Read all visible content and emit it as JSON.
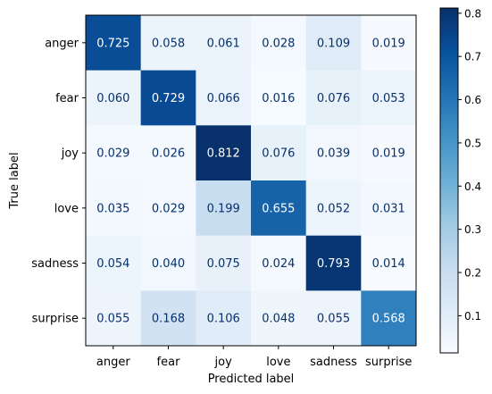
{
  "chart_data": {
    "type": "heatmap",
    "title": "",
    "xlabel": "Predicted label",
    "ylabel": "True label",
    "x_categories": [
      "anger",
      "fear",
      "joy",
      "love",
      "sadness",
      "surprise"
    ],
    "y_categories": [
      "anger",
      "fear",
      "joy",
      "love",
      "sadness",
      "surprise"
    ],
    "values": [
      [
        0.725,
        0.058,
        0.061,
        0.028,
        0.109,
        0.019
      ],
      [
        0.06,
        0.729,
        0.066,
        0.016,
        0.076,
        0.053
      ],
      [
        0.029,
        0.026,
        0.812,
        0.076,
        0.039,
        0.019
      ],
      [
        0.035,
        0.029,
        0.199,
        0.655,
        0.052,
        0.031
      ],
      [
        0.054,
        0.04,
        0.075,
        0.024,
        0.793,
        0.014
      ],
      [
        0.055,
        0.168,
        0.106,
        0.048,
        0.055,
        0.568
      ]
    ],
    "value_labels": [
      [
        "0.725",
        "0.058",
        "0.061",
        "0.028",
        "0.109",
        "0.019"
      ],
      [
        "0.060",
        "0.729",
        "0.066",
        "0.016",
        "0.076",
        "0.053"
      ],
      [
        "0.029",
        "0.026",
        "0.812",
        "0.076",
        "0.039",
        "0.019"
      ],
      [
        "0.035",
        "0.029",
        "0.199",
        "0.655",
        "0.052",
        "0.031"
      ],
      [
        "0.054",
        "0.040",
        "0.075",
        "0.024",
        "0.793",
        "0.014"
      ],
      [
        "0.055",
        "0.168",
        "0.106",
        "0.048",
        "0.055",
        "0.568"
      ]
    ],
    "colormap": "Blues",
    "colorbar": {
      "range": [
        0.014,
        0.812
      ],
      "ticks": [
        0.1,
        0.2,
        0.3,
        0.4,
        0.5,
        0.6,
        0.7,
        0.8
      ],
      "tick_labels": [
        "0.1",
        "0.2",
        "0.3",
        "0.4",
        "0.5",
        "0.6",
        "0.7",
        "0.8"
      ]
    },
    "grid": false
  }
}
